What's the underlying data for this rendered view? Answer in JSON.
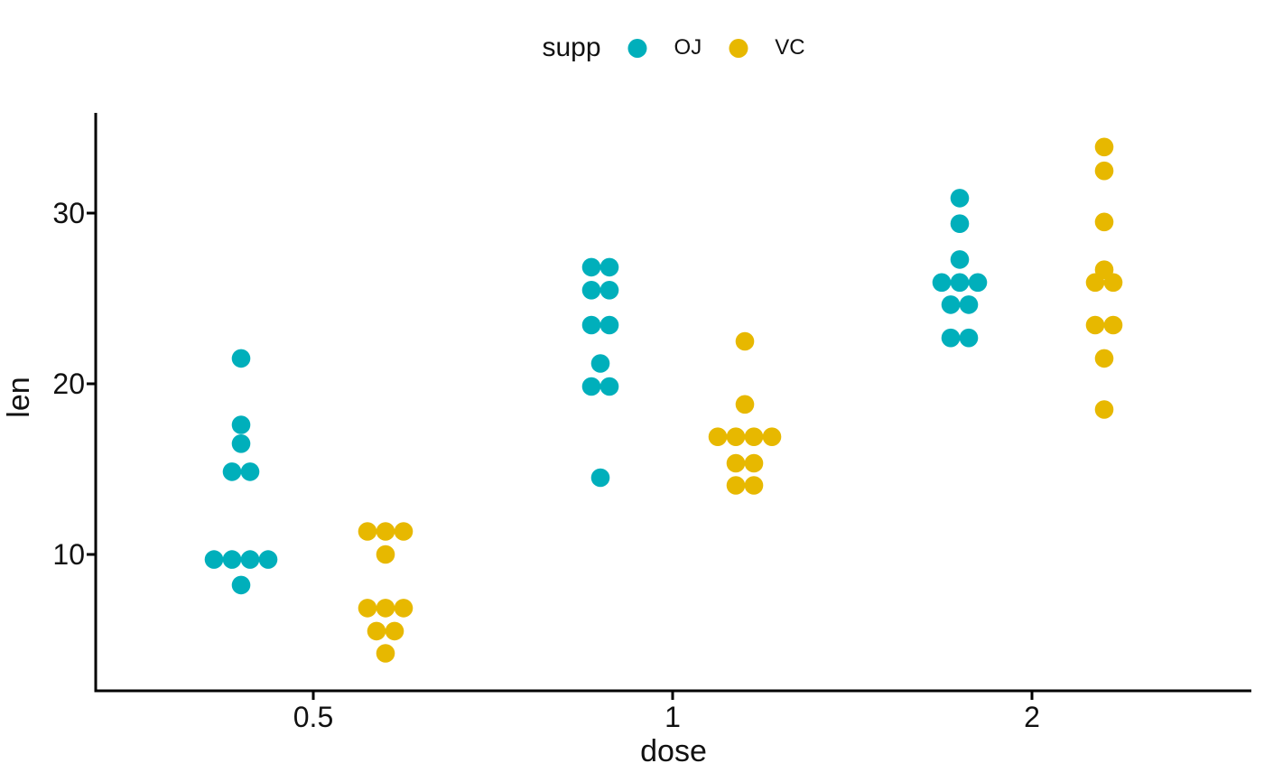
{
  "legend": {
    "title": "supp",
    "items": [
      {
        "label": "OJ",
        "color": "#00AFBB"
      },
      {
        "label": "VC",
        "color": "#E7B800"
      }
    ]
  },
  "chart_data": {
    "type": "scatter",
    "subtype": "dotplot-center-stacked-dodged",
    "title": "",
    "xlabel": "dose",
    "ylabel": "len",
    "x_categories": [
      "0.5",
      "1",
      "2"
    ],
    "y_ticks": [
      "10",
      "20",
      "30"
    ],
    "ylim": [
      2,
      35.9
    ],
    "grid": false,
    "legend_position": "top",
    "point_colors": {
      "OJ": "#00AFBB",
      "VC": "#E7B800"
    },
    "axis_color": "#000000",
    "series": [
      {
        "name": "OJ",
        "color": "#00AFBB",
        "groups": [
          {
            "dose": "0.5",
            "stacks": [
              [
                8.2
              ],
              [
                9.4,
                9.7,
                9.7,
                10.0
              ],
              [
                14.5,
                15.2
              ],
              [
                16.5
              ],
              [
                17.6
              ],
              [
                21.5
              ]
            ]
          },
          {
            "dose": "1",
            "stacks": [
              [
                14.5
              ],
              [
                19.7,
                20.0
              ],
              [
                21.2
              ],
              [
                23.3,
                23.6
              ],
              [
                25.2,
                25.8
              ],
              [
                26.4,
                27.3
              ]
            ]
          },
          {
            "dose": "2",
            "stacks": [
              [
                22.4,
                23.0
              ],
              [
                24.5,
                24.8
              ],
              [
                25.5,
                26.4,
                26.4
              ],
              [
                27.3
              ],
              [
                29.4
              ],
              [
                30.9
              ]
            ]
          }
        ]
      },
      {
        "name": "VC",
        "color": "#E7B800",
        "groups": [
          {
            "dose": "0.5",
            "stacks": [
              [
                4.2
              ],
              [
                5.2,
                5.8
              ],
              [
                6.4,
                7.0,
                7.3
              ],
              [
                10.0
              ],
              [
                11.2,
                11.2,
                11.5
              ]
            ]
          },
          {
            "dose": "1",
            "stacks": [
              [
                13.6,
                14.5
              ],
              [
                15.2,
                15.5
              ],
              [
                16.5,
                16.5,
                17.3,
                17.3
              ],
              [
                18.8
              ],
              [
                22.5
              ]
            ]
          },
          {
            "dose": "2",
            "stacks": [
              [
                18.5
              ],
              [
                21.5
              ],
              [
                23.3,
                23.6
              ],
              [
                25.5,
                26.4
              ],
              [
                26.7
              ],
              [
                29.5
              ],
              [
                32.5
              ],
              [
                33.9
              ]
            ]
          }
        ]
      }
    ]
  }
}
